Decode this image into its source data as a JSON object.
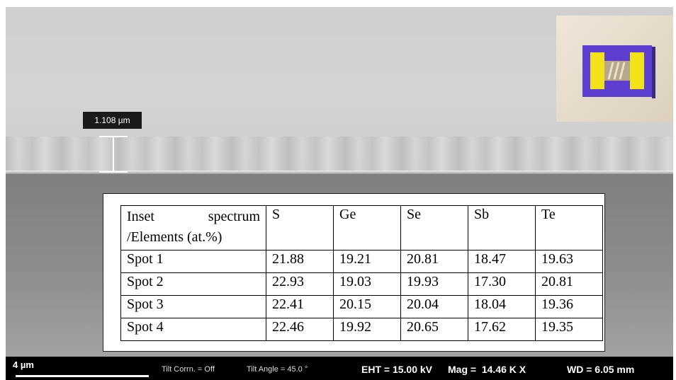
{
  "measurement_label": "1.108 µm",
  "table": {
    "header": [
      "Inset spectrum /Elements (at.%)",
      "S",
      "Ge",
      "Se",
      "Sb",
      "Te"
    ],
    "rows": [
      [
        "Spot 1",
        "21.88",
        "19.21",
        "20.81",
        "18.47",
        "19.63"
      ],
      [
        "Spot 2",
        "22.93",
        "19.03",
        "19.93",
        "17.30",
        "20.81"
      ],
      [
        "Spot 3",
        "22.41",
        "20.15",
        "20.04",
        "18.04",
        "19.36"
      ],
      [
        "Spot 4",
        "22.46",
        "19.92",
        "20.65",
        "17.62",
        "19.35"
      ]
    ]
  },
  "sem_info": {
    "scale_bar": "4 µm",
    "tilt_corr": "Tilt Corrn. = Off",
    "tilt_angle": "Tilt Angle = 45.0 °",
    "eht": "EHT = 15.00 kV",
    "mag": "Mag =  14.46 K X",
    "wd": "WD = 6.05 mm"
  }
}
